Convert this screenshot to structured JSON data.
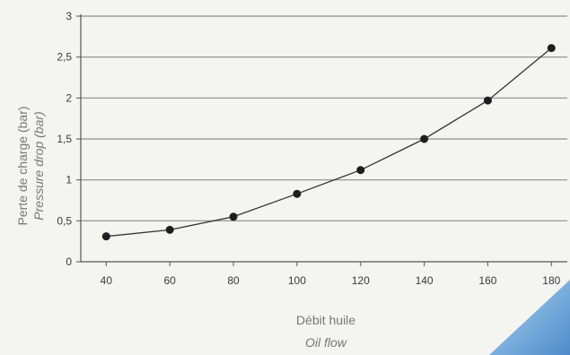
{
  "chart_data": {
    "type": "line",
    "title": "",
    "xlabel": "Débit huile",
    "xlabel_secondary": "Oil flow",
    "ylabel": "Perte de charge (bar)",
    "ylabel_secondary": "Pressure drop (bar)",
    "x": [
      40,
      60,
      80,
      100,
      120,
      140,
      160,
      180
    ],
    "x_tick_labels": [
      "40",
      "60",
      "80",
      "100",
      "120",
      "140",
      "160",
      "180"
    ],
    "y_tick_values": [
      0,
      0.5,
      1,
      1.5,
      2,
      2.5,
      3
    ],
    "y_tick_labels": [
      "0",
      "0,5",
      "1",
      "1,5",
      "2",
      "2,5",
      "3"
    ],
    "xlim": [
      32,
      185
    ],
    "ylim": [
      0,
      3
    ],
    "grid": "horizontal",
    "legend": "none",
    "series": [
      {
        "values": [
          0.31,
          0.39,
          0.55,
          0.83,
          1.12,
          1.5,
          1.97,
          2.61
        ]
      }
    ],
    "colors": {
      "line": "#333333",
      "marker": "#1e1e1e",
      "grid": "#8c8c8c",
      "accent": "#5b9bd5"
    }
  }
}
